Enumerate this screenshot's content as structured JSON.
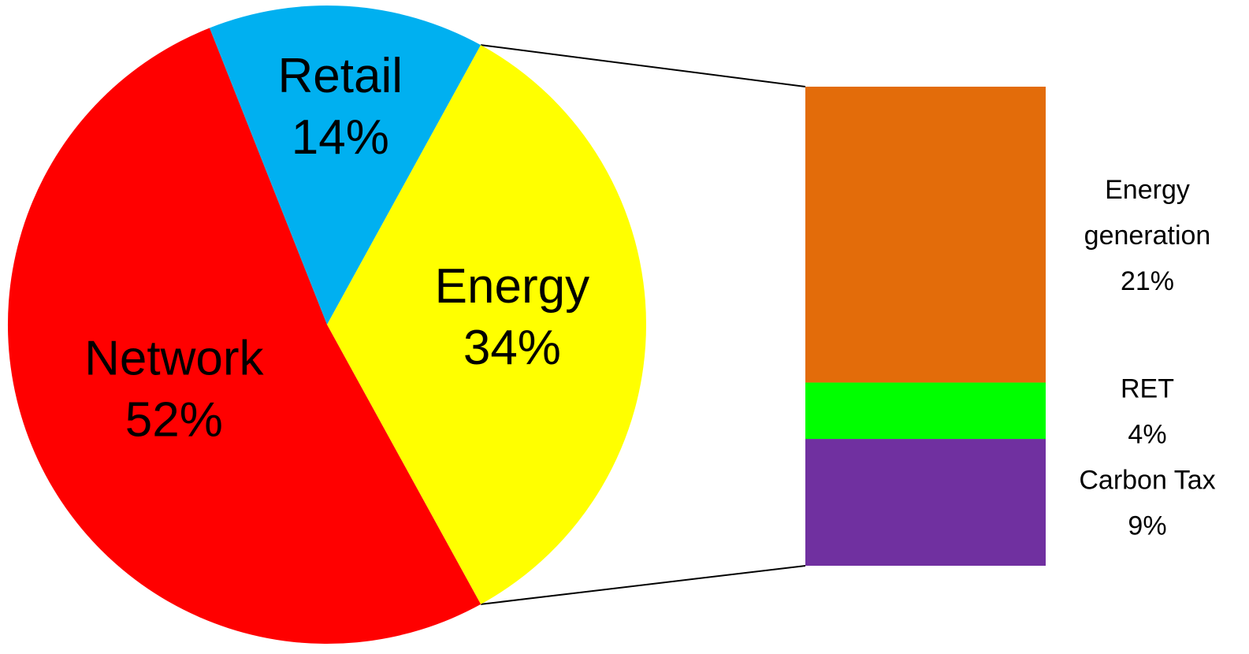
{
  "chart_data": {
    "type": "bar-of-pie",
    "pie": {
      "slices": [
        {
          "label": "Retail",
          "value": 14,
          "value_label": "14%",
          "color": "#00B0F0"
        },
        {
          "label": "Energy",
          "value": 34,
          "value_label": "34%",
          "color": "#FFFF00"
        },
        {
          "label": "Network",
          "value": 52,
          "value_label": "52%",
          "color": "#FF0000"
        }
      ],
      "exploded_slice": "Energy"
    },
    "bar": {
      "segments": [
        {
          "label": "Energy generation",
          "label_lines": [
            "Energy",
            "generation"
          ],
          "value": 21,
          "value_label": "21%",
          "color": "#E36C0A"
        },
        {
          "label": "RET",
          "label_lines": [
            "RET"
          ],
          "value": 4,
          "value_label": "4%",
          "color": "#00FF00"
        },
        {
          "label": "Carbon Tax",
          "label_lines": [
            "Carbon Tax"
          ],
          "value": 9,
          "value_label": "9%",
          "color": "#7030A0"
        }
      ]
    },
    "legend": "none",
    "grid": false
  }
}
